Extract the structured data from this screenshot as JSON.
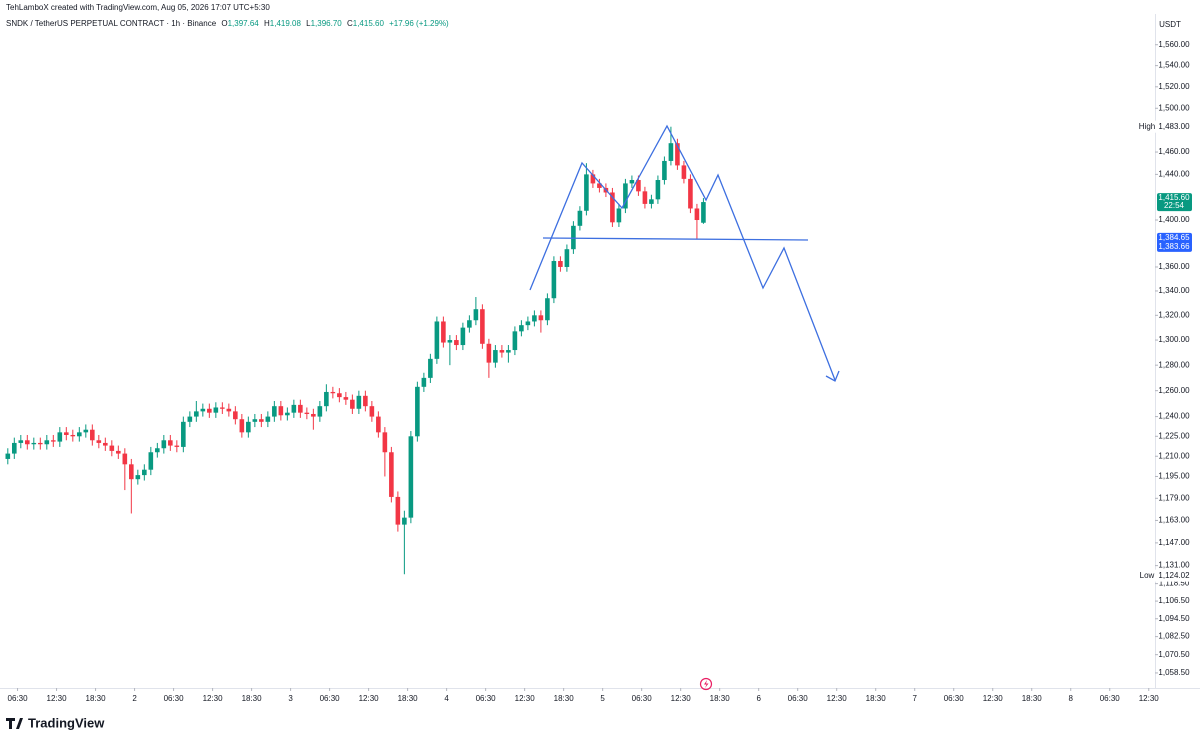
{
  "header": {
    "credit": "TehLamboX created with TradingView.com, Aug 05, 2026 17:07 UTC+5:30",
    "logo": "TradingView"
  },
  "legend": {
    "symbol": "SNDK / TetherUS PERPETUAL CONTRACT · 1h · Binance",
    "o_label": "O",
    "o": "1,397.64",
    "h_label": "H",
    "h": "1,419.08",
    "l_label": "L",
    "l": "1,396.70",
    "c_label": "C",
    "c": "1,415.60",
    "change": "+17.96 (+1.29%)"
  },
  "chart_data": {
    "type": "candlestick",
    "currency": "USDT",
    "log_scale": true,
    "grid": false,
    "up_color": "#089981",
    "down_color": "#f23645",
    "x": [
      0,
      1,
      2,
      3,
      4,
      5,
      6,
      7,
      8,
      9,
      10,
      11,
      12,
      13,
      14,
      15,
      16,
      17,
      18,
      19,
      20,
      21,
      22,
      23,
      24,
      25,
      26,
      27,
      28,
      29,
      30,
      31,
      32,
      33,
      34,
      35,
      36,
      37,
      38,
      39,
      40,
      41,
      42,
      43,
      44,
      45,
      46,
      47,
      48,
      49,
      50,
      51,
      52,
      53,
      54,
      55,
      56,
      57,
      58,
      59,
      60,
      61,
      62,
      63,
      64,
      65,
      66,
      67,
      68,
      69,
      70,
      71,
      72,
      73,
      74,
      75,
      76,
      77,
      78,
      79,
      80,
      81,
      82,
      83,
      84,
      85,
      86,
      87,
      88,
      89,
      90,
      91,
      92,
      93,
      94,
      95,
      96,
      97,
      98,
      99,
      100,
      101,
      102,
      103,
      104,
      105,
      106,
      107
    ],
    "open": [
      1208,
      1212,
      1220,
      1222,
      1219,
      1220,
      1219,
      1222,
      1221,
      1228,
      1226,
      1225,
      1228,
      1230,
      1222,
      1220,
      1218,
      1214,
      1212,
      1204,
      1193,
      1196,
      1200,
      1213,
      1216,
      1222,
      1218,
      1217,
      1236,
      1240,
      1244,
      1246,
      1243,
      1247,
      1246,
      1244,
      1238,
      1228,
      1236,
      1238,
      1236,
      1240,
      1248,
      1241,
      1243,
      1249,
      1243,
      1242,
      1240,
      1248,
      1259,
      1258,
      1255,
      1253,
      1246,
      1256,
      1248,
      1240,
      1228,
      1213,
      1180,
      1160,
      1165,
      1225,
      1263,
      1270,
      1285,
      1315,
      1298,
      1300,
      1296,
      1310,
      1316,
      1325,
      1297,
      1282,
      1292,
      1290,
      1292,
      1307,
      1312,
      1315,
      1320,
      1316,
      1334,
      1365,
      1360,
      1375,
      1395,
      1408,
      1440,
      1432,
      1428,
      1424,
      1398,
      1410,
      1432,
      1435,
      1425,
      1414,
      1418,
      1435,
      1452,
      1468,
      1448,
      1436,
      1410,
      1397.64
    ],
    "high": [
      1216,
      1224,
      1226,
      1226,
      1224,
      1224,
      1226,
      1226,
      1232,
      1232,
      1230,
      1232,
      1234,
      1234,
      1226,
      1224,
      1222,
      1218,
      1216,
      1208,
      1200,
      1204,
      1217,
      1220,
      1226,
      1226,
      1222,
      1240,
      1244,
      1252,
      1250,
      1250,
      1251,
      1251,
      1250,
      1248,
      1242,
      1240,
      1242,
      1242,
      1244,
      1252,
      1252,
      1247,
      1253,
      1253,
      1247,
      1246,
      1252,
      1265,
      1263,
      1262,
      1259,
      1257,
      1260,
      1260,
      1252,
      1244,
      1232,
      1217,
      1184,
      1170,
      1229,
      1267,
      1274,
      1289,
      1319,
      1319,
      1304,
      1304,
      1314,
      1320,
      1335,
      1329,
      1301,
      1296,
      1296,
      1296,
      1311,
      1316,
      1319,
      1324,
      1324,
      1338,
      1369,
      1369,
      1379,
      1399,
      1412,
      1450,
      1444,
      1436,
      1432,
      1428,
      1414,
      1436,
      1439,
      1439,
      1429,
      1422,
      1439,
      1456,
      1483,
      1472,
      1452,
      1440,
      1414,
      1419.08
    ],
    "low": [
      1204,
      1208,
      1216,
      1215,
      1215,
      1215,
      1215,
      1217,
      1217,
      1222,
      1221,
      1221,
      1224,
      1218,
      1216,
      1214,
      1210,
      1208,
      1185,
      1168,
      1189,
      1192,
      1196,
      1209,
      1212,
      1214,
      1213,
      1213,
      1232,
      1236,
      1240,
      1239,
      1239,
      1242,
      1240,
      1234,
      1224,
      1224,
      1232,
      1232,
      1232,
      1236,
      1237,
      1237,
      1239,
      1239,
      1238,
      1230,
      1236,
      1244,
      1254,
      1251,
      1249,
      1242,
      1242,
      1244,
      1236,
      1224,
      1195,
      1176,
      1155,
      1125,
      1161,
      1221,
      1259,
      1266,
      1281,
      1294,
      1280,
      1292,
      1292,
      1306,
      1312,
      1293,
      1270,
      1278,
      1286,
      1282,
      1288,
      1303,
      1308,
      1311,
      1306,
      1312,
      1330,
      1356,
      1356,
      1371,
      1391,
      1404,
      1428,
      1424,
      1420,
      1394,
      1394,
      1406,
      1428,
      1421,
      1410,
      1410,
      1414,
      1431,
      1448,
      1444,
      1432,
      1406,
      1384,
      1396.7
    ],
    "close": [
      1212,
      1220,
      1222,
      1219,
      1220,
      1219,
      1222,
      1221,
      1228,
      1226,
      1225,
      1228,
      1230,
      1222,
      1220,
      1218,
      1214,
      1212,
      1204,
      1193,
      1196,
      1200,
      1213,
      1216,
      1222,
      1218,
      1217,
      1236,
      1240,
      1244,
      1246,
      1243,
      1247,
      1246,
      1244,
      1238,
      1228,
      1236,
      1238,
      1236,
      1240,
      1248,
      1241,
      1243,
      1249,
      1243,
      1242,
      1240,
      1248,
      1259,
      1258,
      1255,
      1253,
      1246,
      1256,
      1248,
      1240,
      1228,
      1213,
      1180,
      1160,
      1165,
      1225,
      1263,
      1270,
      1285,
      1315,
      1298,
      1300,
      1296,
      1310,
      1316,
      1325,
      1297,
      1282,
      1292,
      1290,
      1292,
      1307,
      1312,
      1315,
      1320,
      1316,
      1334,
      1365,
      1360,
      1375,
      1395,
      1408,
      1440,
      1432,
      1428,
      1424,
      1398,
      1410,
      1432,
      1435,
      1425,
      1414,
      1418,
      1435,
      1452,
      1468,
      1448,
      1436,
      1410,
      1400,
      1415.6
    ],
    "xlim": [
      -1.2,
      176
    ],
    "xticks": [
      {
        "value": 1.5,
        "label": "06:30"
      },
      {
        "value": 7.5,
        "label": "12:30"
      },
      {
        "value": 13.5,
        "label": "18:30"
      },
      {
        "value": 19.5,
        "label": "2"
      },
      {
        "value": 25.5,
        "label": "06:30"
      },
      {
        "value": 31.5,
        "label": "12:30"
      },
      {
        "value": 37.5,
        "label": "18:30"
      },
      {
        "value": 43.5,
        "label": "3"
      },
      {
        "value": 49.5,
        "label": "06:30"
      },
      {
        "value": 55.5,
        "label": "12:30"
      },
      {
        "value": 61.5,
        "label": "18:30"
      },
      {
        "value": 67.5,
        "label": "4"
      },
      {
        "value": 73.5,
        "label": "06:30"
      },
      {
        "value": 79.5,
        "label": "12:30"
      },
      {
        "value": 85.5,
        "label": "18:30"
      },
      {
        "value": 91.5,
        "label": "5"
      },
      {
        "value": 97.5,
        "label": "06:30"
      },
      {
        "value": 103.5,
        "label": "12:30"
      },
      {
        "value": 109.5,
        "label": "18:30"
      },
      {
        "value": 115.5,
        "label": "6"
      },
      {
        "value": 121.5,
        "label": "06:30"
      },
      {
        "value": 127.5,
        "label": "12:30"
      },
      {
        "value": 133.5,
        "label": "18:30"
      },
      {
        "value": 139.5,
        "label": "7"
      },
      {
        "value": 145.5,
        "label": "06:30"
      },
      {
        "value": 151.5,
        "label": "12:30"
      },
      {
        "value": 157.5,
        "label": "18:30"
      },
      {
        "value": 163.5,
        "label": "8"
      },
      {
        "value": 169.5,
        "label": "06:30"
      },
      {
        "value": 175.5,
        "label": "12:30"
      }
    ],
    "ylim": [
      1048.7,
      1584
    ],
    "yticks": [
      {
        "value": 1560,
        "label": "1,560.00"
      },
      {
        "value": 1540,
        "label": "1,540.00"
      },
      {
        "value": 1520,
        "label": "1,520.00"
      },
      {
        "value": 1500,
        "label": "1,500.00"
      },
      {
        "value": 1460,
        "label": "1,460.00"
      },
      {
        "value": 1440,
        "label": "1,440.00"
      },
      {
        "value": 1400,
        "label": "1,400.00"
      },
      {
        "value": 1360,
        "label": "1,360.00"
      },
      {
        "value": 1340,
        "label": "1,340.00"
      },
      {
        "value": 1320,
        "label": "1,320.00"
      },
      {
        "value": 1300,
        "label": "1,300.00"
      },
      {
        "value": 1280,
        "label": "1,280.00"
      },
      {
        "value": 1260,
        "label": "1,260.00"
      },
      {
        "value": 1240,
        "label": "1,240.00"
      },
      {
        "value": 1225,
        "label": "1,225.00"
      },
      {
        "value": 1210,
        "label": "1,210.00"
      },
      {
        "value": 1195,
        "label": "1,195.00"
      },
      {
        "value": 1179,
        "label": "1,179.00"
      },
      {
        "value": 1163,
        "label": "1,163.00"
      },
      {
        "value": 1147,
        "label": "1,147.00"
      },
      {
        "value": 1131,
        "label": "1,131.00"
      },
      {
        "value": 1118.5,
        "label": "1,118.50"
      },
      {
        "value": 1106.5,
        "label": "1,106.50"
      },
      {
        "value": 1094.5,
        "label": "1,094.50"
      },
      {
        "value": 1082.5,
        "label": "1,082.50"
      },
      {
        "value": 1070.5,
        "label": "1,070.50"
      },
      {
        "value": 1058.5,
        "label": "1,058.50"
      }
    ],
    "last_price": {
      "value": 1415.6,
      "label": "1,415.60",
      "countdown": "22:54",
      "color": "#089981"
    },
    "line_price": {
      "value": 1384.65,
      "label": "1,384.65",
      "label_2": "1,383.66",
      "color": "#2962ff"
    },
    "high_marker": {
      "text": "High",
      "value": 1483,
      "label": "1,483.00"
    },
    "low_marker": {
      "text": "Low",
      "value": 1124.02,
      "label": "1,124.02"
    }
  }
}
